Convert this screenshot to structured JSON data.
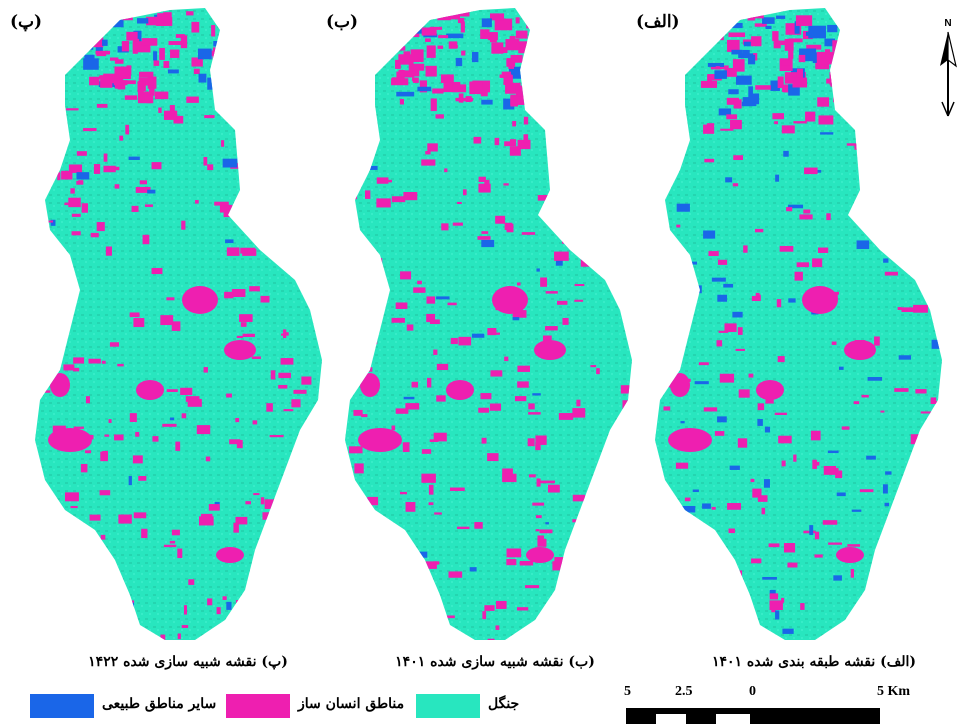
{
  "panels": [
    {
      "letter": "(پ)",
      "caption": "(پ) نقشه شبیه سازی شده ۱۴۲۲"
    },
    {
      "letter": "(ب)",
      "caption": "(ب) نقشه شبیه سازی شده ۱۴۰۱"
    },
    {
      "letter": "(الف)",
      "caption": "(الف) نقشه طبقه بندی شده ۱۴۰۱"
    }
  ],
  "legend": [
    {
      "label": "سایر مناطق طبیعی",
      "color": "#1a66e8"
    },
    {
      "label": "مناطق انسان ساز",
      "color": "#ee1fb0"
    },
    {
      "label": "جنگل",
      "color": "#28e6bf"
    }
  ],
  "scale_bar": {
    "labels": [
      "5",
      "2.5",
      "0",
      "5 Km"
    ]
  },
  "north_arrow": {
    "label": "N",
    "icon": "north-arrow-icon"
  }
}
